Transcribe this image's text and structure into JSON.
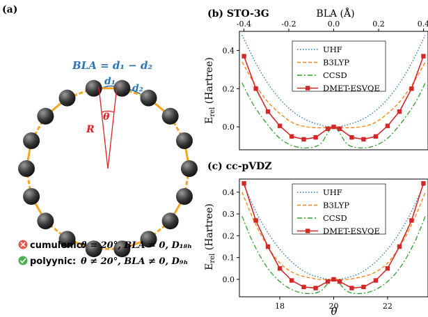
{
  "panel_a": {
    "label": "(a)",
    "bla_formula": "BLA = d₁ − d₂",
    "d1": "d₁",
    "d2": "d₂",
    "theta": "θ",
    "radius": "R",
    "cumulenic_tag": "cumulenic:",
    "cumulenic_cond": "θ = 20°, BLA = 0, D₁₈ₕ",
    "polyynic_tag": "polyynic:",
    "polyynic_cond": "θ ≠ 20°, BLA ≠ 0, D₉ₕ",
    "ring_atoms": 18,
    "colors": {
      "bla": "#2e75b6",
      "angle": "#e02020",
      "bond": "#f5a623",
      "atom": "#3a3a3a",
      "bad": "#e0584a",
      "good": "#4caf50"
    }
  },
  "chart_data": [
    {
      "type": "line",
      "title": "(b) STO-3G",
      "top_axis_label": "BLA (Å)",
      "top_ticks": [
        -0.4,
        -0.2,
        0.0,
        0.2,
        0.4
      ],
      "ylabel": "E_rel (Hartree)",
      "ylim": [
        -0.12,
        0.5
      ],
      "yticks": [
        0.0,
        0.2,
        0.4
      ],
      "xlim": [
        16.5,
        23.5
      ],
      "legend": "top-center",
      "series": [
        {
          "name": "UHF",
          "color": "#1f77b4",
          "dash": "1.5,2.5",
          "x": [
            16.6,
            17.2,
            17.8,
            18.4,
            19.0,
            19.6,
            20.0,
            20.4,
            21.0,
            21.6,
            22.2,
            22.8,
            23.4
          ],
          "y": [
            0.48,
            0.31,
            0.18,
            0.09,
            0.035,
            0.007,
            0.0,
            0.007,
            0.035,
            0.09,
            0.18,
            0.31,
            0.48
          ]
        },
        {
          "name": "B3LYP",
          "color": "#ff7f0e",
          "dash": "5,3",
          "x": [
            16.6,
            17.0,
            17.5,
            18.0,
            18.5,
            19.0,
            19.5,
            20.0,
            20.5,
            21.0,
            21.5,
            22.0,
            22.5,
            23.0,
            23.4
          ],
          "y": [
            0.34,
            0.24,
            0.14,
            0.07,
            0.02,
            0.0,
            -0.005,
            0.0,
            -0.005,
            0.0,
            0.02,
            0.07,
            0.14,
            0.24,
            0.34
          ]
        },
        {
          "name": "CCSD",
          "color": "#2ca02c",
          "dash": "7,3,2,3",
          "x": [
            16.6,
            17.0,
            17.5,
            18.0,
            18.5,
            19.0,
            19.5,
            20.0,
            20.5,
            21.0,
            21.5,
            22.0,
            22.5,
            23.0,
            23.4
          ],
          "y": [
            0.23,
            0.12,
            0.02,
            -0.06,
            -0.1,
            -0.11,
            -0.09,
            0.0,
            -0.09,
            -0.11,
            -0.1,
            -0.06,
            0.02,
            0.12,
            0.23
          ]
        },
        {
          "name": "DMET-ESVQE",
          "color": "#d62728",
          "dash": "",
          "marker": "square",
          "x": [
            16.67,
            17.11,
            17.56,
            18.0,
            18.44,
            18.89,
            19.33,
            19.78,
            20.0,
            20.22,
            20.67,
            21.11,
            21.56,
            22.0,
            22.44,
            22.89,
            23.33
          ],
          "y": [
            0.37,
            0.2,
            0.08,
            0.005,
            -0.05,
            -0.065,
            -0.055,
            -0.01,
            0.0,
            -0.01,
            -0.055,
            -0.065,
            -0.05,
            0.005,
            0.08,
            0.2,
            0.37
          ]
        }
      ]
    },
    {
      "type": "line",
      "title": "(c) cc-pVDZ",
      "xlabel": "θ",
      "xticks": [
        18,
        20,
        22
      ],
      "ylabel": "E_rel (Hartree)",
      "ylim": [
        -0.08,
        0.46
      ],
      "yticks": [
        0.0,
        0.1,
        0.2,
        0.3,
        0.4
      ],
      "xlim": [
        16.5,
        23.5
      ],
      "legend": "top-center",
      "series": [
        {
          "name": "UHF",
          "color": "#1f77b4",
          "dash": "1.5,2.5",
          "x": [
            16.6,
            17.2,
            17.8,
            18.4,
            19.0,
            19.6,
            20.0,
            20.4,
            21.0,
            21.6,
            22.2,
            22.8,
            23.4
          ],
          "y": [
            0.45,
            0.29,
            0.17,
            0.085,
            0.03,
            0.005,
            0.0,
            0.005,
            0.03,
            0.085,
            0.17,
            0.29,
            0.45
          ]
        },
        {
          "name": "B3LYP",
          "color": "#ff7f0e",
          "dash": "5,3",
          "x": [
            16.6,
            17.0,
            17.5,
            18.0,
            18.5,
            19.0,
            19.5,
            20.0,
            20.5,
            21.0,
            21.5,
            22.0,
            22.5,
            23.0,
            23.4
          ],
          "y": [
            0.4,
            0.28,
            0.16,
            0.075,
            0.03,
            0.01,
            0.0,
            0.0,
            0.0,
            0.01,
            0.03,
            0.075,
            0.16,
            0.28,
            0.4
          ]
        },
        {
          "name": "CCSD",
          "color": "#2ca02c",
          "dash": "7,3,2,3",
          "x": [
            16.6,
            17.0,
            17.5,
            18.0,
            18.5,
            19.0,
            19.5,
            20.0,
            20.5,
            21.0,
            21.5,
            22.0,
            22.5,
            23.0,
            23.4
          ],
          "y": [
            0.29,
            0.17,
            0.06,
            -0.01,
            -0.05,
            -0.065,
            -0.055,
            0.0,
            -0.055,
            -0.065,
            -0.05,
            -0.01,
            0.06,
            0.17,
            0.29
          ]
        },
        {
          "name": "DMET-ESVQE",
          "color": "#d62728",
          "dash": "",
          "marker": "square",
          "x": [
            16.67,
            17.11,
            17.56,
            18.0,
            18.44,
            18.89,
            19.33,
            19.78,
            20.0,
            20.22,
            20.67,
            21.11,
            21.56,
            22.0,
            22.44,
            22.89,
            23.33
          ],
          "y": [
            0.44,
            0.27,
            0.15,
            0.05,
            -0.005,
            -0.035,
            -0.04,
            -0.01,
            0.0,
            -0.01,
            -0.04,
            -0.035,
            -0.005,
            0.05,
            0.15,
            0.27,
            0.44
          ]
        }
      ]
    }
  ]
}
